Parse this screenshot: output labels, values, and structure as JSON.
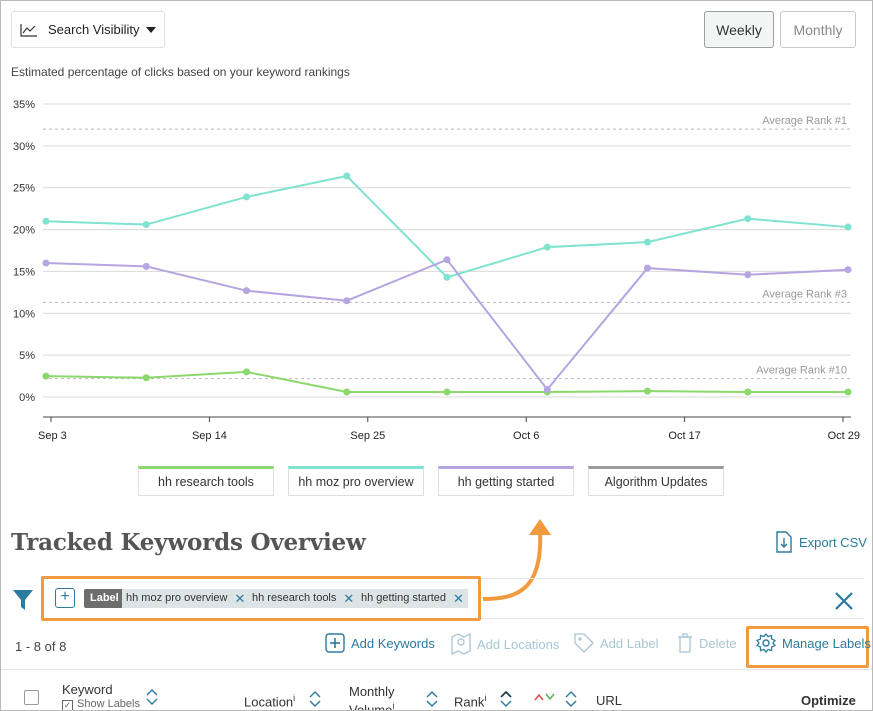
{
  "metric_select": {
    "label": "Search Visibility"
  },
  "period_toggle": {
    "weekly": "Weekly",
    "monthly": "Monthly",
    "active": "weekly"
  },
  "subtitle": "Estimated percentage of clicks based on your keyword rankings",
  "chart_data": {
    "type": "line",
    "title": "",
    "xlabel": "",
    "ylabel": "",
    "x_ticks": [
      "Sep 3",
      "Sep 14",
      "Sep 25",
      "Oct 6",
      "Oct 17",
      "Oct 29"
    ],
    "y_ticks": [
      "0%",
      "5%",
      "10%",
      "15%",
      "20%",
      "25%",
      "30%",
      "35%"
    ],
    "ylim": [
      0,
      35
    ],
    "grid": true,
    "legend_position": "bottom",
    "x": [
      "Sep 3",
      "Sep 10",
      "Sep 17",
      "Sep 24",
      "Oct 1",
      "Oct 8",
      "Oct 15",
      "Oct 22",
      "Oct 29"
    ],
    "series": [
      {
        "name": "hh research tools",
        "color": "#8bd86c",
        "values": [
          2.5,
          2.3,
          3.0,
          0.6,
          0.6,
          0.6,
          0.7,
          0.6,
          0.6
        ]
      },
      {
        "name": "hh moz pro overview",
        "color": "#7fe3cf",
        "values": [
          21.0,
          20.6,
          23.9,
          26.4,
          14.3,
          17.9,
          18.5,
          21.3,
          20.3
        ]
      },
      {
        "name": "hh getting started",
        "color": "#b5a5e0",
        "values": [
          16.0,
          15.6,
          12.7,
          11.5,
          16.4,
          0.9,
          15.4,
          14.6,
          15.2
        ]
      }
    ],
    "reference_lines": [
      {
        "label": "Average Rank #1",
        "value": 32.0
      },
      {
        "label": "Average Rank #3",
        "value": 11.3
      },
      {
        "label": "Average Rank #10",
        "value": 2.2
      }
    ]
  },
  "legend": [
    {
      "label": "hh research tools",
      "color": "#8bd86c"
    },
    {
      "label": "hh moz pro overview",
      "color": "#7fe3cf"
    },
    {
      "label": "hh getting started",
      "color": "#b5a5e0"
    },
    {
      "label": "Algorithm Updates",
      "color": "#9b9b9b"
    }
  ],
  "section_title": "Tracked Keywords Overview",
  "export_label": "Export CSV",
  "filters": {
    "label_tag": "Label",
    "chips": [
      "hh moz pro overview",
      "hh research tools",
      "hh getting started"
    ]
  },
  "toolbar": {
    "count": "1 - 8 of 8",
    "add_keywords": "Add Keywords",
    "add_locations": "Add Locations",
    "add_label": "Add Label",
    "delete": "Delete",
    "manage_labels": "Manage Labels"
  },
  "table_headers": {
    "keyword": "Keyword",
    "show_labels": "Show Labels",
    "location": "Location",
    "monthly_volume": "Monthly Volume",
    "rank": "Rank",
    "url": "URL",
    "optimize": "Optimize",
    "info_glyph": "i"
  },
  "colors": {
    "accent": "#2b7aa0",
    "highlight": "#f19a3e"
  }
}
